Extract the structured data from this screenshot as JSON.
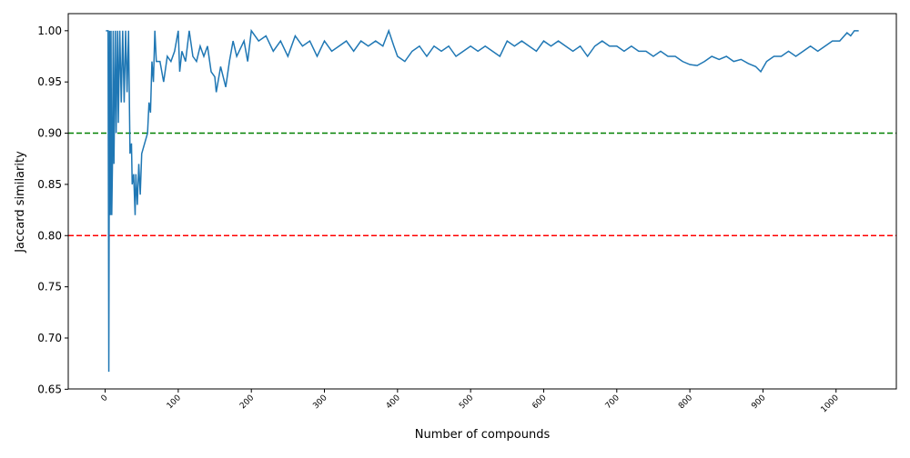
{
  "chart_data": {
    "type": "line",
    "xlabel": "Number of compounds",
    "ylabel": "Jaccard similarity",
    "x": [
      1,
      2,
      3,
      4,
      5,
      6,
      7,
      8,
      9,
      10,
      11,
      12,
      14,
      15,
      17,
      18,
      20,
      22,
      24,
      26,
      28,
      30,
      32,
      34,
      36,
      37,
      39,
      41,
      42,
      44,
      46,
      48,
      50,
      54,
      58,
      60,
      62,
      64,
      66,
      68,
      70,
      75,
      80,
      85,
      90,
      95,
      100,
      102,
      105,
      110,
      115,
      120,
      125,
      130,
      135,
      140,
      145,
      150,
      152,
      158,
      165,
      170,
      175,
      180,
      190,
      195,
      200,
      210,
      220,
      230,
      240,
      250,
      260,
      270,
      280,
      290,
      300,
      310,
      320,
      330,
      340,
      350,
      360,
      370,
      380,
      388,
      395,
      400,
      410,
      420,
      430,
      440,
      450,
      460,
      470,
      480,
      490,
      500,
      510,
      520,
      530,
      540,
      550,
      560,
      570,
      580,
      590,
      600,
      610,
      620,
      630,
      640,
      650,
      660,
      670,
      680,
      690,
      700,
      710,
      720,
      730,
      740,
      750,
      760,
      770,
      780,
      790,
      800,
      810,
      820,
      830,
      840,
      850,
      860,
      870,
      880,
      890,
      897,
      905,
      915,
      925,
      935,
      945,
      955,
      965,
      975,
      985,
      995,
      1005,
      1015,
      1020,
      1025,
      1031
    ],
    "series": [
      {
        "color": "#1f77b4",
        "values": [
          1.0,
          1.0,
          1.0,
          1.0,
          0.667,
          1.0,
          0.82,
          1.0,
          0.82,
          0.87,
          1.0,
          0.87,
          1.0,
          0.9,
          1.0,
          0.91,
          1.0,
          0.93,
          1.0,
          0.93,
          1.0,
          0.94,
          1.0,
          0.88,
          0.89,
          0.85,
          0.86,
          0.82,
          0.86,
          0.83,
          0.87,
          0.84,
          0.88,
          0.89,
          0.9,
          0.93,
          0.92,
          0.97,
          0.95,
          1.0,
          0.97,
          0.97,
          0.95,
          0.975,
          0.97,
          0.98,
          1.0,
          0.96,
          0.98,
          0.97,
          1.0,
          0.975,
          0.97,
          0.985,
          0.975,
          0.985,
          0.96,
          0.955,
          0.94,
          0.965,
          0.945,
          0.97,
          0.99,
          0.975,
          0.99,
          0.97,
          1.0,
          0.99,
          0.995,
          0.98,
          0.99,
          0.975,
          0.995,
          0.985,
          0.99,
          0.975,
          0.99,
          0.98,
          0.985,
          0.99,
          0.98,
          0.99,
          0.985,
          0.99,
          0.985,
          1.0,
          0.985,
          0.975,
          0.97,
          0.98,
          0.985,
          0.975,
          0.985,
          0.98,
          0.985,
          0.975,
          0.98,
          0.985,
          0.98,
          0.985,
          0.98,
          0.975,
          0.99,
          0.985,
          0.99,
          0.985,
          0.98,
          0.99,
          0.985,
          0.99,
          0.985,
          0.98,
          0.985,
          0.975,
          0.985,
          0.99,
          0.985,
          0.985,
          0.98,
          0.985,
          0.98,
          0.98,
          0.975,
          0.98,
          0.975,
          0.975,
          0.97,
          0.967,
          0.966,
          0.97,
          0.975,
          0.972,
          0.975,
          0.97,
          0.972,
          0.968,
          0.965,
          0.96,
          0.97,
          0.975,
          0.975,
          0.98,
          0.975,
          0.98,
          0.985,
          0.98,
          0.985,
          0.99,
          0.99,
          0.998,
          0.995,
          1.0,
          1.0
        ]
      }
    ],
    "hlines": [
      {
        "value": 0.9,
        "color": "#008000"
      },
      {
        "value": 0.8,
        "color": "#ff0000"
      }
    ],
    "xlim": [
      -50.5,
      1082.5
    ],
    "ylim": [
      0.6503,
      1.0167
    ],
    "xticks": [
      0,
      100,
      200,
      300,
      400,
      500,
      600,
      700,
      800,
      900,
      1000
    ],
    "yticks": [
      {
        "value": 0.65,
        "label": "0.65"
      },
      {
        "value": 0.7,
        "label": "0.70"
      },
      {
        "value": 0.75,
        "label": "0.75"
      },
      {
        "value": 0.8,
        "label": "0.80"
      },
      {
        "value": 0.85,
        "label": "0.85"
      },
      {
        "value": 0.9,
        "label": "0.90"
      },
      {
        "value": 0.95,
        "label": "0.95"
      },
      {
        "value": 1.0,
        "label": "1.00"
      }
    ]
  }
}
